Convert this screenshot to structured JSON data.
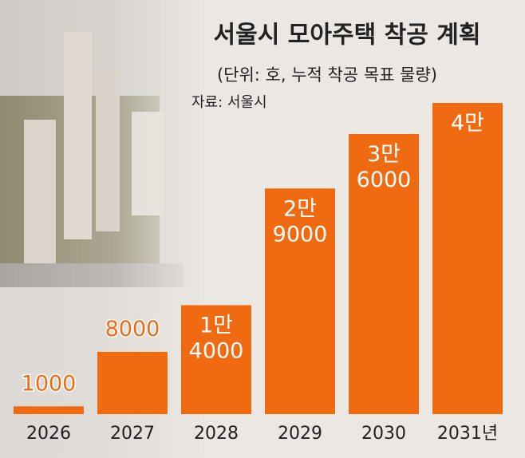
{
  "chart_data": {
    "type": "bar",
    "title": "서울시 모아주택 착공 계획",
    "subtitle": "(단위: 호, 누적 착공 목표 물량)",
    "source": "자료: 서울시",
    "categories": [
      "2026",
      "2027",
      "2028",
      "2029",
      "2030",
      "2031년"
    ],
    "values": [
      1000,
      8000,
      14000,
      29000,
      36000,
      40000
    ],
    "value_labels": [
      [
        "1000"
      ],
      [
        "8000"
      ],
      [
        "1만",
        "4000"
      ],
      [
        "2만",
        "9000"
      ],
      [
        "3만",
        "6000"
      ],
      [
        "4만"
      ]
    ],
    "color": "#f06a12"
  }
}
